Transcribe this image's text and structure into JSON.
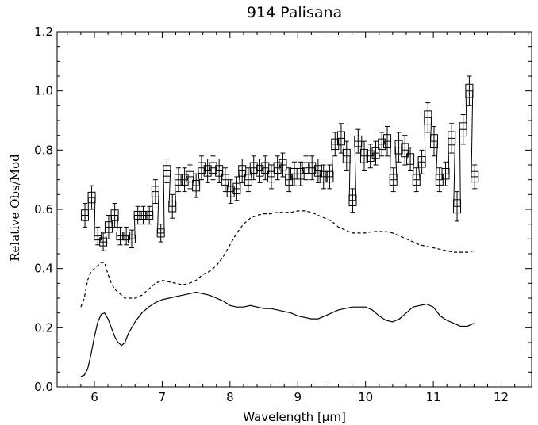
{
  "chart_data": {
    "type": "line",
    "title": "914 Palisana",
    "xlabel": "Wavelength [μm]",
    "ylabel": "Relative Obs/Mod",
    "xlim": [
      5.45,
      12.45
    ],
    "ylim": [
      0.0,
      1.2
    ],
    "x_ticks": [
      6,
      7,
      8,
      9,
      10,
      11,
      12
    ],
    "y_ticks": [
      0.0,
      0.2,
      0.4,
      0.6,
      0.8,
      1.0,
      1.2
    ],
    "grid": false,
    "legend": "none",
    "series": [
      {
        "style": "histogram-with-errorbars",
        "color": "#000000",
        "points": [
          [
            5.86,
            0.58,
            0.04
          ],
          [
            5.96,
            0.64,
            0.04
          ],
          [
            6.05,
            0.51,
            0.03
          ],
          [
            6.13,
            0.49,
            0.03
          ],
          [
            6.21,
            0.54,
            0.04
          ],
          [
            6.3,
            0.58,
            0.04
          ],
          [
            6.38,
            0.51,
            0.03
          ],
          [
            6.47,
            0.51,
            0.03
          ],
          [
            6.55,
            0.5,
            0.03
          ],
          [
            6.64,
            0.58,
            0.03
          ],
          [
            6.72,
            0.58,
            0.03
          ],
          [
            6.81,
            0.58,
            0.03
          ],
          [
            6.9,
            0.66,
            0.04
          ],
          [
            6.98,
            0.52,
            0.03
          ],
          [
            7.07,
            0.73,
            0.04
          ],
          [
            7.15,
            0.61,
            0.04
          ],
          [
            7.24,
            0.7,
            0.04
          ],
          [
            7.33,
            0.7,
            0.04
          ],
          [
            7.41,
            0.71,
            0.04
          ],
          [
            7.5,
            0.68,
            0.04
          ],
          [
            7.58,
            0.74,
            0.04
          ],
          [
            7.67,
            0.73,
            0.04
          ],
          [
            7.75,
            0.74,
            0.04
          ],
          [
            7.84,
            0.73,
            0.04
          ],
          [
            7.93,
            0.7,
            0.04
          ],
          [
            8.01,
            0.66,
            0.04
          ],
          [
            8.1,
            0.67,
            0.04
          ],
          [
            8.18,
            0.73,
            0.04
          ],
          [
            8.27,
            0.7,
            0.04
          ],
          [
            8.35,
            0.74,
            0.04
          ],
          [
            8.44,
            0.73,
            0.04
          ],
          [
            8.52,
            0.74,
            0.04
          ],
          [
            8.61,
            0.71,
            0.04
          ],
          [
            8.7,
            0.74,
            0.04
          ],
          [
            8.78,
            0.75,
            0.04
          ],
          [
            8.87,
            0.7,
            0.04
          ],
          [
            8.95,
            0.72,
            0.04
          ],
          [
            9.04,
            0.72,
            0.04
          ],
          [
            9.12,
            0.74,
            0.04
          ],
          [
            9.21,
            0.74,
            0.04
          ],
          [
            9.3,
            0.73,
            0.04
          ],
          [
            9.38,
            0.71,
            0.04
          ],
          [
            9.47,
            0.71,
            0.04
          ],
          [
            9.55,
            0.82,
            0.04
          ],
          [
            9.64,
            0.84,
            0.05
          ],
          [
            9.72,
            0.78,
            0.05
          ],
          [
            9.81,
            0.63,
            0.04
          ],
          [
            9.89,
            0.83,
            0.04
          ],
          [
            9.98,
            0.78,
            0.05
          ],
          [
            10.07,
            0.78,
            0.04
          ],
          [
            10.15,
            0.79,
            0.04
          ],
          [
            10.24,
            0.82,
            0.04
          ],
          [
            10.32,
            0.83,
            0.05
          ],
          [
            10.41,
            0.7,
            0.04
          ],
          [
            10.49,
            0.81,
            0.05
          ],
          [
            10.58,
            0.8,
            0.05
          ],
          [
            10.66,
            0.77,
            0.04
          ],
          [
            10.75,
            0.7,
            0.04
          ],
          [
            10.83,
            0.76,
            0.04
          ],
          [
            10.92,
            0.91,
            0.05
          ],
          [
            11.01,
            0.83,
            0.05
          ],
          [
            11.09,
            0.7,
            0.04
          ],
          [
            11.18,
            0.72,
            0.04
          ],
          [
            11.27,
            0.84,
            0.05
          ],
          [
            11.35,
            0.61,
            0.05
          ],
          [
            11.44,
            0.87,
            0.05
          ],
          [
            11.53,
            1.0,
            0.05
          ],
          [
            11.61,
            0.71,
            0.04
          ]
        ]
      },
      {
        "style": "dashed",
        "color": "#000000",
        "points": [
          [
            5.8,
            0.27
          ],
          [
            5.85,
            0.3
          ],
          [
            5.9,
            0.36
          ],
          [
            5.95,
            0.39
          ],
          [
            6.0,
            0.4
          ],
          [
            6.05,
            0.41
          ],
          [
            6.1,
            0.42
          ],
          [
            6.15,
            0.42
          ],
          [
            6.2,
            0.38
          ],
          [
            6.25,
            0.35
          ],
          [
            6.3,
            0.33
          ],
          [
            6.35,
            0.32
          ],
          [
            6.4,
            0.31
          ],
          [
            6.45,
            0.3
          ],
          [
            6.5,
            0.3
          ],
          [
            6.6,
            0.3
          ],
          [
            6.7,
            0.31
          ],
          [
            6.8,
            0.33
          ],
          [
            6.9,
            0.35
          ],
          [
            7.0,
            0.36
          ],
          [
            7.1,
            0.355
          ],
          [
            7.2,
            0.35
          ],
          [
            7.3,
            0.345
          ],
          [
            7.4,
            0.35
          ],
          [
            7.5,
            0.36
          ],
          [
            7.6,
            0.38
          ],
          [
            7.7,
            0.39
          ],
          [
            7.8,
            0.41
          ],
          [
            7.9,
            0.44
          ],
          [
            8.0,
            0.48
          ],
          [
            8.1,
            0.52
          ],
          [
            8.2,
            0.55
          ],
          [
            8.3,
            0.57
          ],
          [
            8.4,
            0.58
          ],
          [
            8.5,
            0.585
          ],
          [
            8.6,
            0.585
          ],
          [
            8.7,
            0.59
          ],
          [
            8.8,
            0.59
          ],
          [
            8.9,
            0.59
          ],
          [
            9.0,
            0.595
          ],
          [
            9.1,
            0.595
          ],
          [
            9.2,
            0.59
          ],
          [
            9.3,
            0.58
          ],
          [
            9.4,
            0.57
          ],
          [
            9.5,
            0.56
          ],
          [
            9.6,
            0.54
          ],
          [
            9.7,
            0.53
          ],
          [
            9.8,
            0.52
          ],
          [
            9.9,
            0.52
          ],
          [
            10.0,
            0.52
          ],
          [
            10.1,
            0.525
          ],
          [
            10.2,
            0.525
          ],
          [
            10.3,
            0.525
          ],
          [
            10.4,
            0.52
          ],
          [
            10.5,
            0.51
          ],
          [
            10.6,
            0.5
          ],
          [
            10.7,
            0.49
          ],
          [
            10.8,
            0.48
          ],
          [
            10.9,
            0.475
          ],
          [
            11.0,
            0.47
          ],
          [
            11.1,
            0.465
          ],
          [
            11.2,
            0.46
          ],
          [
            11.3,
            0.455
          ],
          [
            11.4,
            0.455
          ],
          [
            11.5,
            0.455
          ],
          [
            11.6,
            0.46
          ]
        ]
      },
      {
        "style": "solid",
        "color": "#000000",
        "points": [
          [
            5.8,
            0.035
          ],
          [
            5.85,
            0.04
          ],
          [
            5.9,
            0.06
          ],
          [
            5.95,
            0.11
          ],
          [
            6.0,
            0.17
          ],
          [
            6.05,
            0.22
          ],
          [
            6.1,
            0.245
          ],
          [
            6.15,
            0.25
          ],
          [
            6.2,
            0.23
          ],
          [
            6.25,
            0.2
          ],
          [
            6.3,
            0.17
          ],
          [
            6.35,
            0.15
          ],
          [
            6.4,
            0.14
          ],
          [
            6.45,
            0.15
          ],
          [
            6.5,
            0.18
          ],
          [
            6.6,
            0.22
          ],
          [
            6.7,
            0.25
          ],
          [
            6.8,
            0.27
          ],
          [
            6.9,
            0.285
          ],
          [
            7.0,
            0.295
          ],
          [
            7.1,
            0.3
          ],
          [
            7.2,
            0.305
          ],
          [
            7.3,
            0.31
          ],
          [
            7.4,
            0.315
          ],
          [
            7.5,
            0.32
          ],
          [
            7.6,
            0.315
          ],
          [
            7.7,
            0.31
          ],
          [
            7.8,
            0.3
          ],
          [
            7.9,
            0.29
          ],
          [
            8.0,
            0.275
          ],
          [
            8.1,
            0.27
          ],
          [
            8.2,
            0.27
          ],
          [
            8.3,
            0.275
          ],
          [
            8.4,
            0.27
          ],
          [
            8.5,
            0.265
          ],
          [
            8.6,
            0.265
          ],
          [
            8.7,
            0.26
          ],
          [
            8.8,
            0.255
          ],
          [
            8.9,
            0.25
          ],
          [
            9.0,
            0.24
          ],
          [
            9.1,
            0.235
          ],
          [
            9.2,
            0.23
          ],
          [
            9.3,
            0.23
          ],
          [
            9.4,
            0.24
          ],
          [
            9.5,
            0.25
          ],
          [
            9.6,
            0.26
          ],
          [
            9.7,
            0.265
          ],
          [
            9.8,
            0.27
          ],
          [
            9.9,
            0.27
          ],
          [
            10.0,
            0.27
          ],
          [
            10.1,
            0.26
          ],
          [
            10.2,
            0.24
          ],
          [
            10.3,
            0.225
          ],
          [
            10.4,
            0.22
          ],
          [
            10.5,
            0.23
          ],
          [
            10.6,
            0.25
          ],
          [
            10.7,
            0.27
          ],
          [
            10.8,
            0.275
          ],
          [
            10.9,
            0.28
          ],
          [
            11.0,
            0.27
          ],
          [
            11.1,
            0.24
          ],
          [
            11.2,
            0.225
          ],
          [
            11.3,
            0.215
          ],
          [
            11.4,
            0.205
          ],
          [
            11.5,
            0.205
          ],
          [
            11.6,
            0.215
          ]
        ]
      }
    ]
  }
}
